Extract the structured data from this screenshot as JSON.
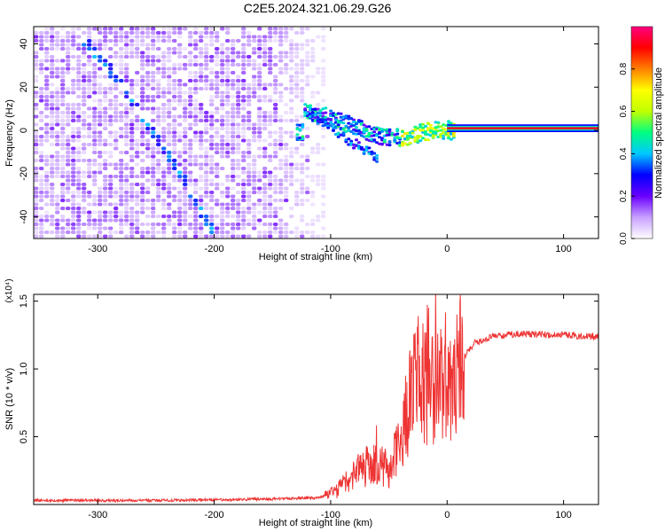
{
  "title": "C2E5.2024.321.06.29.G26",
  "chart_data": [
    {
      "type": "heatmap",
      "xlabel": "Height of straight line (km)",
      "ylabel": "Frequency (Hz)",
      "xlim": [
        -355,
        130
      ],
      "ylim": [
        -50,
        48
      ],
      "x_ticks": [
        -300,
        -200,
        -100,
        0,
        100
      ],
      "y_ticks": [
        -40,
        -20,
        0,
        20,
        40
      ],
      "colorbar": {
        "label": "Normalized spectral amplitude",
        "range": [
          0,
          1
        ],
        "ticks": [
          "0.0",
          "0.2",
          "0.4",
          "0.6",
          "0.8"
        ],
        "colors": [
          "#ffffff",
          "#c8a0ff",
          "#6a00ff",
          "#0000ff",
          "#00c8ff",
          "#00ff80",
          "#c0ff00",
          "#ffff00",
          "#ff8000",
          "#ff0000",
          "#ff0080"
        ]
      },
      "features": {
        "noise_region_x": [
          -355,
          -110
        ],
        "descending_trace": [
          [
            -318,
            45
          ],
          [
            -290,
            28
          ],
          [
            -265,
            8
          ],
          [
            -250,
            -4
          ],
          [
            -232,
            -18
          ],
          [
            -215,
            -35
          ],
          [
            -200,
            -48
          ]
        ],
        "converging_trace": [
          [
            -125,
            10
          ],
          [
            -100,
            6
          ],
          [
            -80,
            2
          ],
          [
            -60,
            -2
          ],
          [
            -40,
            -3
          ],
          [
            -20,
            0
          ],
          [
            0,
            1
          ]
        ],
        "secondary_trace": [
          [
            -120,
            8
          ],
          [
            -95,
            0
          ],
          [
            -75,
            -8
          ],
          [
            -60,
            -12
          ]
        ],
        "carrier_line": {
          "x": [
            0,
            130
          ],
          "y": 1
        }
      }
    },
    {
      "type": "line",
      "xlabel": "Height of straight line (km)",
      "ylabel": "SNR (10 * v/v)",
      "y_multiplier": "(x10⁴)",
      "xlim": [
        -355,
        130
      ],
      "ylim": [
        0,
        1.55
      ],
      "x_ticks": [
        -300,
        -200,
        -100,
        0,
        100
      ],
      "y_ticks": [
        0.5,
        1.0,
        1.5
      ],
      "y_tick_labels": [
        "0.5",
        "1.0",
        "1.5"
      ],
      "color": "#ee3333",
      "profile": [
        [
          -355,
          0.03
        ],
        [
          -250,
          0.03
        ],
        [
          -150,
          0.04
        ],
        [
          -110,
          0.05
        ],
        [
          -95,
          0.1
        ],
        [
          -80,
          0.22
        ],
        [
          -70,
          0.28
        ],
        [
          -60,
          0.3
        ],
        [
          -50,
          0.25
        ],
        [
          -40,
          0.5
        ],
        [
          -30,
          0.8
        ],
        [
          -20,
          0.95
        ],
        [
          -10,
          0.95
        ],
        [
          0,
          0.95
        ],
        [
          10,
          1.05
        ],
        [
          25,
          1.2
        ],
        [
          40,
          1.24
        ],
        [
          60,
          1.26
        ],
        [
          100,
          1.25
        ],
        [
          130,
          1.24
        ]
      ]
    }
  ]
}
